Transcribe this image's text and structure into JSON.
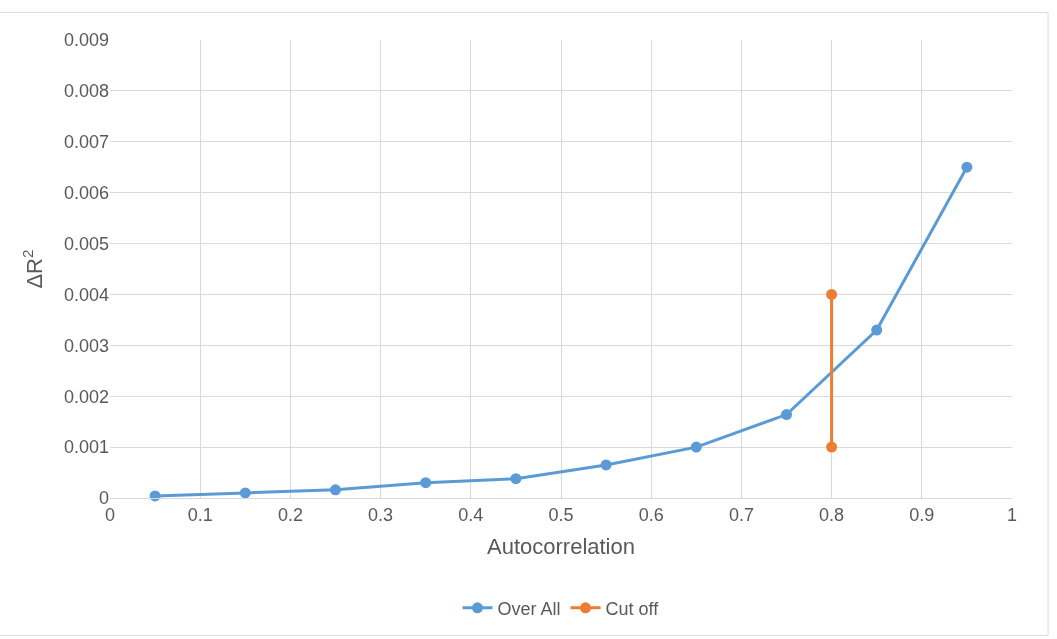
{
  "chart_data": {
    "type": "line",
    "xlabel": "Autocorrelation",
    "ylabel": "ΔR$^{2}$",
    "xlim": [
      0,
      1
    ],
    "xticks": [
      0,
      0.1,
      0.2,
      0.3,
      0.4,
      0.5,
      0.6,
      0.7,
      0.8,
      0.9,
      1
    ],
    "ylim": [
      0,
      0.009
    ],
    "yticks": [
      0,
      0.001,
      0.002,
      0.003,
      0.004,
      0.005,
      0.006,
      0.007,
      0.008,
      0.009
    ],
    "grid": true,
    "legend": "bottom",
    "marker": "circle",
    "line_style": "solid",
    "series": [
      {
        "name": "Over All",
        "color": "#5b9bd5",
        "x": [
          0.05,
          0.15,
          0.25,
          0.35,
          0.45,
          0.55,
          0.65,
          0.75,
          0.85,
          0.95
        ],
        "values": [
          4e-05,
          0.0001,
          0.00016,
          0.0003,
          0.00038,
          0.00065,
          0.001,
          0.00164,
          0.0033,
          0.0065
        ]
      },
      {
        "name": "Cut off",
        "color": "#ed7d31",
        "x": [
          0.8,
          0.8
        ],
        "values": [
          0.001,
          0.004
        ]
      }
    ]
  }
}
